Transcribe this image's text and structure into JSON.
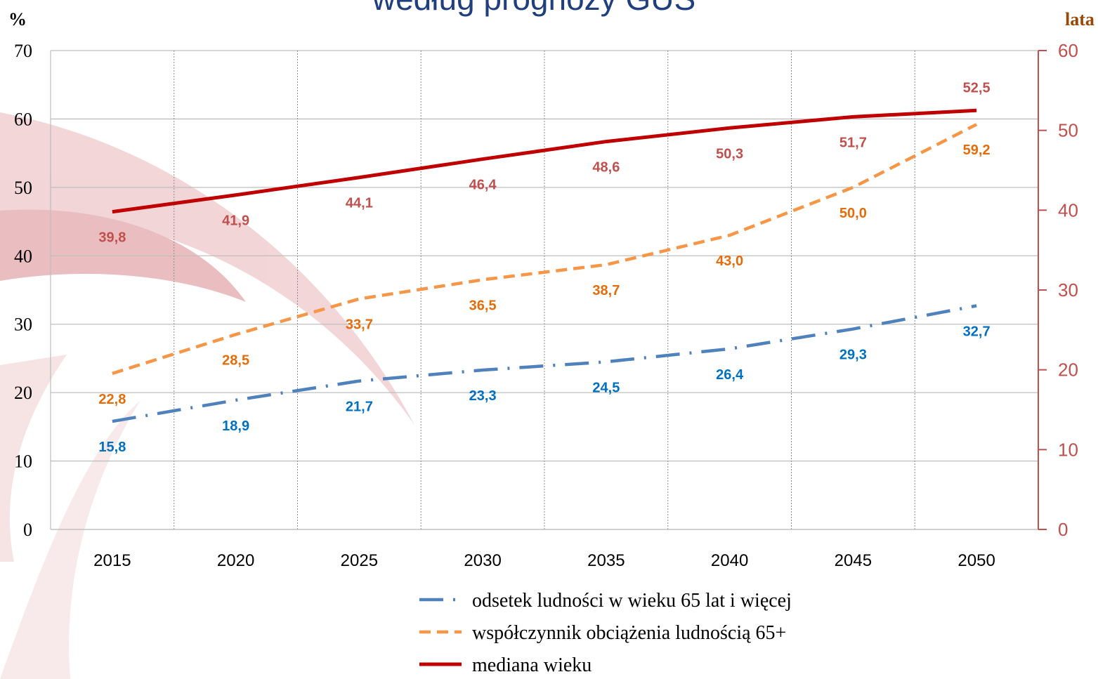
{
  "chart_data": {
    "type": "line",
    "title": "według prognozy GUS",
    "ylabel": "%",
    "y2label": "lata",
    "categories": [
      "2015",
      "2020",
      "2025",
      "2030",
      "2035",
      "2040",
      "2045",
      "2050"
    ],
    "series": [
      {
        "name": "odsetek ludności w wieku 65 lat i więcej",
        "color": "#4f81bd",
        "label_color": "#0070c0",
        "dash": "dashdot",
        "values": [
          15.8,
          18.9,
          21.7,
          23.3,
          24.5,
          26.4,
          29.3,
          32.7
        ],
        "value_labels": [
          "15,8",
          "18,9",
          "21,7",
          "23,3",
          "24,5",
          "26,4",
          "29,3",
          "32,7"
        ]
      },
      {
        "name": "współczynnik obciążenia ludnością 65+",
        "color": "#f79646",
        "label_color": "#e46c0a",
        "dash": "dashed",
        "values": [
          22.8,
          28.5,
          33.7,
          36.5,
          38.7,
          43.0,
          50.0,
          59.2
        ],
        "value_labels": [
          "22,8",
          "28,5",
          "33,7",
          "36,5",
          "38,7",
          "43,0",
          "50,0",
          "59,2"
        ]
      },
      {
        "name": "mediana wieku",
        "color": "#c00000",
        "label_color": "#c0504d",
        "dash": "solid",
        "axis": "y2",
        "values": [
          39.8,
          41.9,
          44.1,
          46.4,
          48.6,
          50.3,
          51.7,
          52.5
        ],
        "value_labels": [
          "39,8",
          "41,9",
          "44,1",
          "46,4",
          "48,6",
          "50,3",
          "51,7",
          "52,5"
        ]
      }
    ],
    "ylim": [
      0,
      70
    ],
    "yticks": [
      0,
      10,
      20,
      30,
      40,
      50,
      60,
      70
    ],
    "y2lim": [
      0,
      60
    ],
    "y2ticks": [
      0,
      10,
      20,
      30,
      40,
      50,
      60
    ],
    "grid": true,
    "legend": "bottom"
  }
}
